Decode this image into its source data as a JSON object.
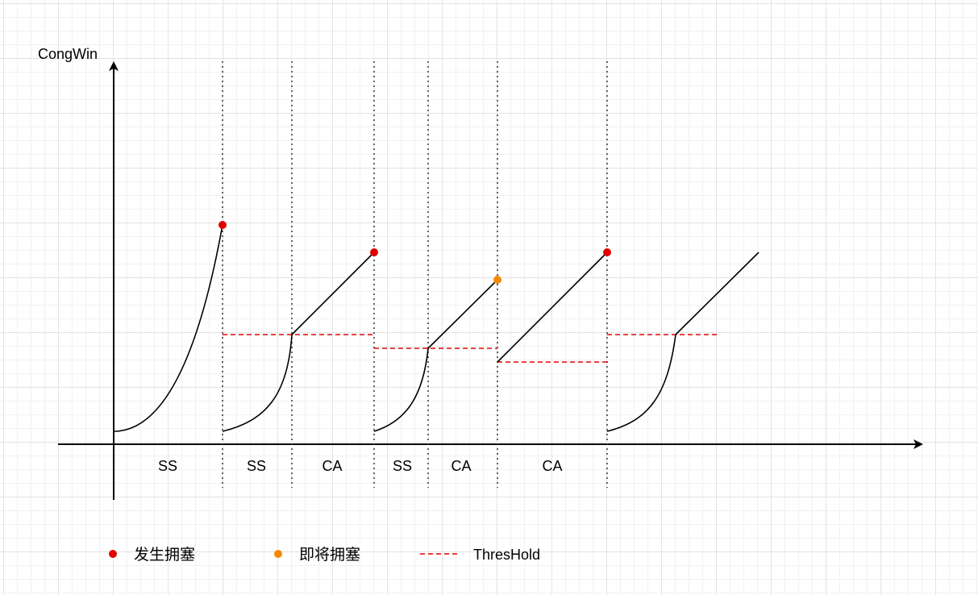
{
  "y_axis_label": "CongWin",
  "phase_labels": [
    "SS",
    "SS",
    "CA",
    "SS",
    "CA",
    "CA"
  ],
  "legend": {
    "congestion": {
      "label": "发生拥塞",
      "color": "#e00000"
    },
    "near_congestion": {
      "label": "即将拥塞",
      "color": "#f28a00"
    },
    "threshold": {
      "label": "ThresHold",
      "color": "#e00000"
    }
  }
}
